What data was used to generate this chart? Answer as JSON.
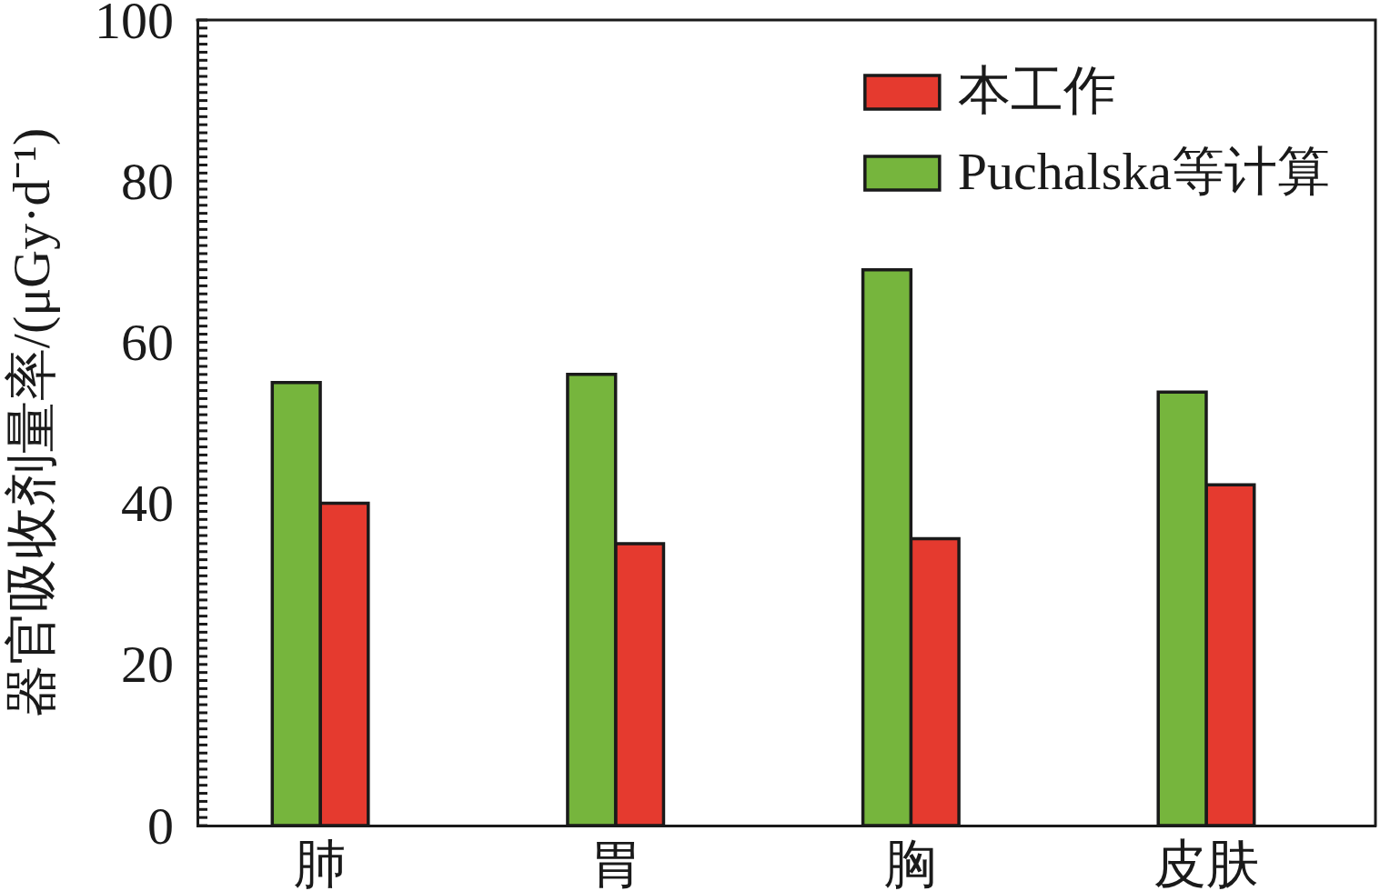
{
  "chart_data": {
    "type": "bar",
    "ylabel": "器官吸收剂量率/(μGy·d⁻¹)",
    "categories": [
      "肺",
      "胃",
      "胸",
      "皮肤"
    ],
    "series": [
      {
        "name": "Puchalska等计算",
        "color": "#76b53d",
        "values": [
          55,
          56,
          69,
          53.8
        ]
      },
      {
        "name": "本工作",
        "color": "#e53a2f",
        "values": [
          40,
          35,
          35.6,
          42.3
        ]
      }
    ],
    "ylim": [
      0,
      100
    ],
    "yticks": [
      0,
      {
        "value": 1,
        "label": null
      },
      {
        "value": 2,
        "label": null
      },
      {
        "value": 3,
        "label": null
      },
      {
        "value": 4,
        "label": null
      },
      {
        "value": 5,
        "label": null
      },
      {
        "value": 6,
        "label": null
      },
      {
        "value": 7,
        "label": null
      },
      {
        "value": 8,
        "label": null
      },
      {
        "value": 9,
        "label": null
      },
      {
        "value": 10,
        "label": null
      },
      {
        "value": 11,
        "label": null
      },
      {
        "value": 12,
        "label": null
      },
      {
        "value": 13,
        "label": null
      },
      {
        "value": 14,
        "label": null
      },
      {
        "value": 15,
        "label": null
      },
      {
        "value": 16,
        "label": null
      },
      {
        "value": 17,
        "label": null
      },
      {
        "value": 18,
        "label": null
      },
      {
        "value": 19,
        "label": null
      },
      20,
      {
        "value": 21,
        "label": null
      },
      {
        "value": 22,
        "label": null
      },
      {
        "value": 23,
        "label": null
      },
      {
        "value": 24,
        "label": null
      },
      {
        "value": 25,
        "label": null
      },
      {
        "value": 26,
        "label": null
      },
      {
        "value": 27,
        "label": null
      },
      {
        "value": 28,
        "label": null
      },
      {
        "value": 29,
        "label": null
      },
      {
        "value": 30,
        "label": null
      },
      {
        "value": 31,
        "label": null
      },
      {
        "value": 32,
        "label": null
      },
      {
        "value": 33,
        "label": null
      },
      {
        "value": 34,
        "label": null
      },
      {
        "value": 35,
        "label": null
      },
      {
        "value": 36,
        "label": null
      },
      {
        "value": 37,
        "label": null
      },
      {
        "value": 38,
        "label": null
      },
      {
        "value": 39,
        "label": null
      },
      40,
      {
        "value": 41,
        "label": null
      },
      {
        "value": 42,
        "label": null
      },
      {
        "value": 43,
        "label": null
      },
      {
        "value": 44,
        "label": null
      },
      {
        "value": 45,
        "label": null
      },
      {
        "value": 46,
        "label": null
      },
      {
        "value": 47,
        "label": null
      },
      {
        "value": 48,
        "label": null
      },
      {
        "value": 49,
        "label": null
      },
      {
        "value": 50,
        "label": null
      },
      {
        "value": 51,
        "label": null
      },
      {
        "value": 52,
        "label": null
      },
      {
        "value": 53,
        "label": null
      },
      {
        "value": 54,
        "label": null
      },
      {
        "value": 55,
        "label": null
      },
      {
        "value": 56,
        "label": null
      },
      {
        "value": 57,
        "label": null
      },
      {
        "value": 58,
        "label": null
      },
      {
        "value": 59,
        "label": null
      },
      60,
      {
        "value": 61,
        "label": null
      },
      {
        "value": 62,
        "label": null
      },
      {
        "value": 63,
        "label": null
      },
      {
        "value": 64,
        "label": null
      },
      {
        "value": 65,
        "label": null
      },
      {
        "value": 66,
        "label": null
      },
      {
        "value": 67,
        "label": null
      },
      {
        "value": 68,
        "label": null
      },
      {
        "value": 69,
        "label": null
      },
      {
        "value": 70,
        "label": null
      },
      {
        "value": 71,
        "label": null
      },
      {
        "value": 72,
        "label": null
      },
      {
        "value": 73,
        "label": null
      },
      {
        "value": 74,
        "label": null
      },
      {
        "value": 75,
        "label": null
      },
      {
        "value": 76,
        "label": null
      },
      {
        "value": 77,
        "label": null
      },
      {
        "value": 78,
        "label": null
      },
      {
        "value": 79,
        "label": null
      },
      80,
      {
        "value": 81,
        "label": null
      },
      {
        "value": 82,
        "label": null
      },
      {
        "value": 83,
        "label": null
      },
      {
        "value": 84,
        "label": null
      },
      {
        "value": 85,
        "label": null
      },
      {
        "value": 86,
        "label": null
      },
      {
        "value": 87,
        "label": null
      },
      {
        "value": 88,
        "label": null
      },
      {
        "value": 89,
        "label": null
      },
      {
        "value": 90,
        "label": null
      },
      {
        "value": 91,
        "label": null
      },
      {
        "value": 92,
        "label": null
      },
      {
        "value": 93,
        "label": null
      },
      {
        "value": 94,
        "label": null
      },
      {
        "value": 95,
        "label": null
      },
      {
        "value": 96,
        "label": null
      },
      {
        "value": 97,
        "label": null
      },
      {
        "value": 98,
        "label": null
      },
      {
        "value": 99,
        "label": null
      },
      100
    ],
    "legend": "top right"
  }
}
